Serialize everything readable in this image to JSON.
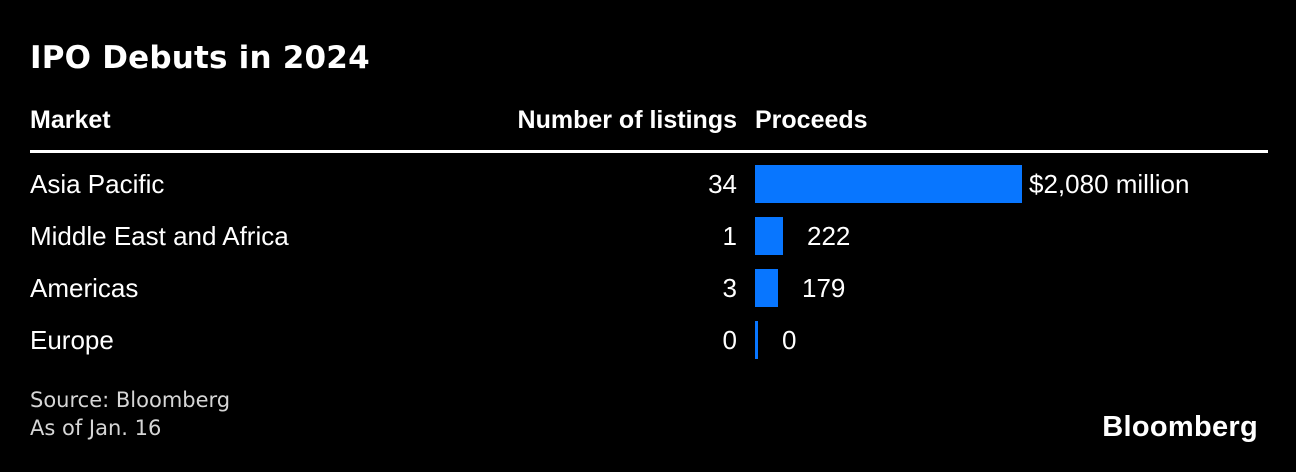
{
  "title": "IPO Debuts in 2024",
  "columns": {
    "market": "Market",
    "listings": "Number of listings",
    "proceeds": "Proceeds"
  },
  "rows": [
    {
      "market": "Asia Pacific",
      "listings": "34",
      "proceeds_value": 2080,
      "proceeds_label": "$2,080 million"
    },
    {
      "market": "Middle East and Africa",
      "listings": "1",
      "proceeds_value": 222,
      "proceeds_label": "222"
    },
    {
      "market": "Americas",
      "listings": "3",
      "proceeds_value": 179,
      "proceeds_label": "179"
    },
    {
      "market": "Europe",
      "listings": "0",
      "proceeds_value": 0,
      "proceeds_label": "0"
    }
  ],
  "footer": {
    "source_line1": "Source: Bloomberg",
    "source_line2": "As of Jan. 16",
    "logo": "Bloomberg"
  },
  "colors": {
    "background": "#000000",
    "text": "#ffffff",
    "bar": "#0876ff",
    "source_text": "#d6d6d6"
  },
  "chart_data": {
    "type": "bar",
    "orientation": "horizontal",
    "title": "IPO Debuts in 2024",
    "categories": [
      "Asia Pacific",
      "Middle East and Africa",
      "Americas",
      "Europe"
    ],
    "series": [
      {
        "name": "Number of listings",
        "values": [
          34,
          1,
          3,
          0
        ]
      },
      {
        "name": "Proceeds ($ million)",
        "values": [
          2080,
          222,
          179,
          0
        ]
      }
    ],
    "value_labels": [
      "$2,080 million",
      "222",
      "179",
      "0"
    ],
    "xlim": [
      0,
      2080
    ],
    "grid": false,
    "legend_position": "none",
    "source": "Source: Bloomberg",
    "as_of": "As of Jan. 16"
  }
}
